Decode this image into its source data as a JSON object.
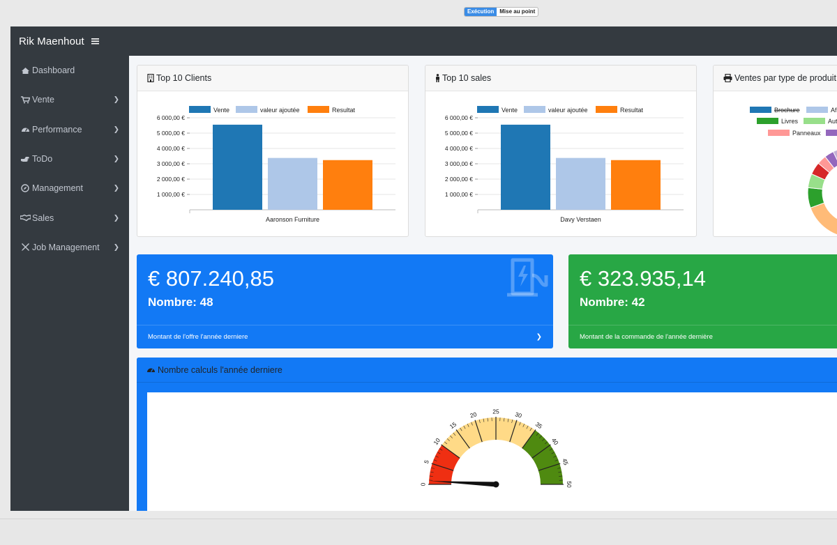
{
  "toggle": {
    "execution": "Exécution",
    "debug": "Mise au point"
  },
  "app": {
    "brand": "Rik Maenhout"
  },
  "sidebar": {
    "items": [
      {
        "label": "Dashboard",
        "icon": "tachometer-icon"
      },
      {
        "label": "Vente",
        "icon": "cart-icon"
      },
      {
        "label": "Performance",
        "icon": "gauge-icon"
      },
      {
        "label": "ToDo",
        "icon": "hand-icon"
      },
      {
        "label": "Management",
        "icon": "compass-icon"
      },
      {
        "label": "Sales",
        "icon": "handshake-icon"
      },
      {
        "label": "Job Management",
        "icon": "tools-icon"
      }
    ]
  },
  "cards": {
    "clients": {
      "title": "Top 10 Clients"
    },
    "sales": {
      "title": "Top 10 sales"
    },
    "product": {
      "title": "Ventes par type de produit"
    }
  },
  "stats": {
    "offer": {
      "amount": "€ 807.240,85",
      "count": "Nombre: 48",
      "footer": "Montant de l'offre l'année derniere"
    },
    "order": {
      "amount": "€ 323.935,14",
      "count": "Nombre: 42",
      "footer": "Montant de la commande de l'année dernière"
    }
  },
  "gauge_card": {
    "title": "Nombre calculs l'année derniere"
  },
  "colors": {
    "vente": "#1f77b4",
    "valeur": "#aec7e8",
    "resultat": "#ff7f0e",
    "blue": "#1279f5",
    "green": "#28a745",
    "sidebar": "#343a40"
  },
  "chart_data": [
    {
      "type": "bar",
      "legend": [
        "Vente",
        "valeur ajoutée",
        "Resultat"
      ],
      "categories": [
        "Aaronson Furniture"
      ],
      "series": [
        {
          "name": "Vente",
          "values": [
            5550
          ]
        },
        {
          "name": "valeur ajoutée",
          "values": [
            3380
          ]
        },
        {
          "name": "Resultat",
          "values": [
            3240
          ]
        }
      ],
      "yticks": [
        "1 000,00 €",
        "2 000,00 €",
        "3 000,00 €",
        "4 000,00 €",
        "5 000,00 €",
        "6 000,00 €"
      ],
      "ylim": [
        0,
        6000
      ]
    },
    {
      "type": "bar",
      "legend": [
        "Vente",
        "valeur ajoutée",
        "Resultat"
      ],
      "categories": [
        "Davy Verstaen"
      ],
      "series": [
        {
          "name": "Vente",
          "values": [
            5550
          ]
        },
        {
          "name": "valeur ajoutée",
          "values": [
            3380
          ]
        },
        {
          "name": "Resultat",
          "values": [
            3240
          ]
        }
      ],
      "yticks": [
        "1 000,00 €",
        "2 000,00 €",
        "3 000,00 €",
        "4 000,00 €",
        "5 000,00 €",
        "6 000,00 €"
      ],
      "ylim": [
        0,
        6000
      ]
    },
    {
      "type": "pie",
      "legend": [
        {
          "label": "Brochure",
          "color": "#1f77b4",
          "struck": true
        },
        {
          "label": "Af",
          "color": "#aec7e8"
        },
        {
          "label": "Livres",
          "color": "#2ca02c"
        },
        {
          "label": "Aut",
          "color": "#98df8a"
        },
        {
          "label": "Panneaux",
          "color": "#ff9896"
        },
        {
          "label": "",
          "color": "#9467bd"
        }
      ]
    },
    {
      "type": "gauge",
      "min": 0,
      "max": 50,
      "value": 0.8,
      "ticks": [
        "0",
        "5",
        "10",
        "15",
        "20",
        "25",
        "30",
        "35",
        "40",
        "45",
        "50"
      ],
      "bands": [
        {
          "from": 0,
          "to": 10,
          "color": "#ef2f12"
        },
        {
          "from": 10,
          "to": 35,
          "color": "#ffda87"
        },
        {
          "from": 35,
          "to": 50,
          "color": "#4f8a10"
        }
      ]
    }
  ]
}
